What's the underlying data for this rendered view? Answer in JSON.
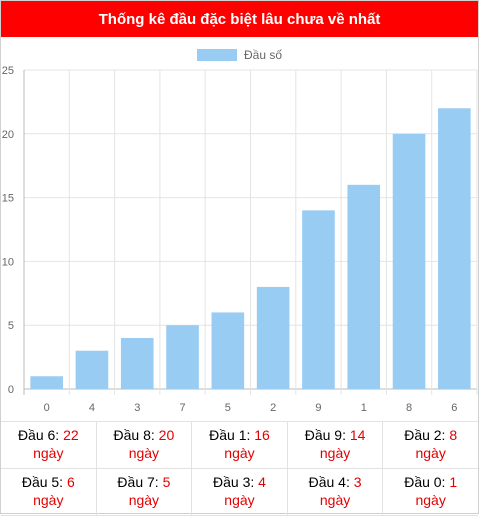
{
  "title": "Thống kê đầu đặc biệt lâu chưa về nhất",
  "colors": {
    "header": "#ff0000",
    "bar": "#99ccf2",
    "value_text": "#e30000"
  },
  "chart_data": {
    "type": "bar",
    "legend": "Đầu số",
    "legend_position": "top",
    "categories": [
      "0",
      "4",
      "3",
      "7",
      "5",
      "2",
      "9",
      "1",
      "8",
      "6"
    ],
    "values": [
      1,
      3,
      4,
      5,
      6,
      8,
      14,
      16,
      20,
      22
    ],
    "ylim": [
      0,
      25
    ],
    "yticks": [
      0,
      5,
      10,
      15,
      20,
      25
    ],
    "grid": true
  },
  "stats": [
    {
      "label": "Đầu 6: ",
      "value": "22",
      "unit": "ngày"
    },
    {
      "label": "Đầu 8: ",
      "value": "20",
      "unit": "ngày"
    },
    {
      "label": "Đầu 1: ",
      "value": "16",
      "unit": "ngày"
    },
    {
      "label": "Đầu 9: ",
      "value": "14",
      "unit": "ngày"
    },
    {
      "label": "Đầu 2: ",
      "value": "8",
      "unit": "ngày"
    },
    {
      "label": "Đầu 5: ",
      "value": "6",
      "unit": "ngày"
    },
    {
      "label": "Đầu 7: ",
      "value": "5",
      "unit": "ngày"
    },
    {
      "label": "Đầu 3: ",
      "value": "4",
      "unit": "ngày"
    },
    {
      "label": "Đầu 4: ",
      "value": "3",
      "unit": "ngày"
    },
    {
      "label": "Đầu 0: ",
      "value": "1",
      "unit": "ngày"
    }
  ]
}
